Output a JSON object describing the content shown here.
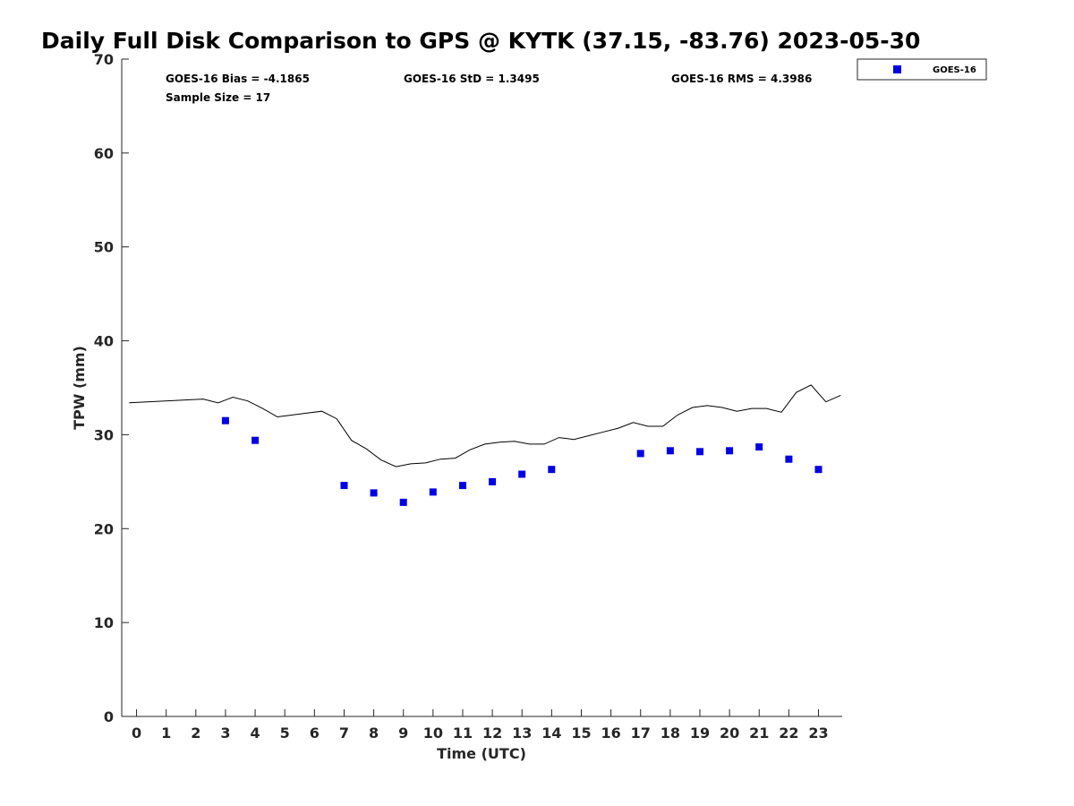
{
  "chart_data": {
    "type": "scatter",
    "title": "Daily Full Disk Comparison to GPS @ KYTK (37.15, -83.76) 2023-05-30",
    "xlabel": "Time (UTC)",
    "ylabel": "TPW (mm)",
    "xlim": [
      -0.5,
      23.8
    ],
    "ylim": [
      0,
      70
    ],
    "xticks": [
      0,
      1,
      2,
      3,
      4,
      5,
      6,
      7,
      8,
      9,
      10,
      11,
      12,
      13,
      14,
      15,
      16,
      17,
      18,
      19,
      20,
      21,
      22,
      23
    ],
    "yticks": [
      0,
      10,
      20,
      30,
      40,
      50,
      60,
      70
    ],
    "grid": false,
    "legend_position": "outside-top-right",
    "colors": {
      "goes16": "#0000e6",
      "gps_line": "#000000"
    },
    "series": [
      {
        "name": "GOES-16",
        "kind": "scatter",
        "x": [
          3,
          4,
          7,
          8,
          9,
          10,
          11,
          12,
          13,
          14,
          17,
          18,
          19,
          20,
          21,
          22,
          23
        ],
        "y": [
          31.5,
          29.4,
          24.6,
          23.8,
          22.8,
          23.9,
          24.6,
          25.0,
          25.8,
          26.3,
          28.0,
          28.3,
          28.2,
          28.3,
          28.7,
          27.4,
          26.3
        ]
      },
      {
        "kind": "line",
        "x": [
          -0.25,
          2.25,
          2.75,
          3.25,
          3.75,
          4.25,
          4.75,
          5.25,
          5.75,
          6.25,
          6.75,
          7.25,
          7.75,
          8.25,
          8.75,
          9.25,
          9.75,
          10.25,
          10.75,
          11.25,
          11.75,
          12.25,
          12.75,
          13.25,
          13.75,
          14.25,
          14.75,
          15.25,
          15.75,
          16.25,
          16.75,
          17.25,
          17.75,
          18.25,
          18.75,
          19.25,
          19.75,
          20.25,
          20.75,
          21.25,
          21.75,
          22.25,
          22.75,
          23.25,
          23.75
        ],
        "y": [
          33.4,
          33.8,
          33.4,
          34.0,
          33.6,
          32.8,
          31.9,
          32.1,
          32.3,
          32.5,
          31.7,
          29.4,
          28.5,
          27.3,
          26.6,
          26.9,
          27.0,
          27.4,
          27.5,
          28.4,
          29.0,
          29.2,
          29.3,
          29.0,
          29.0,
          29.7,
          29.5,
          29.9,
          30.3,
          30.7,
          31.3,
          30.9,
          30.9,
          32.1,
          32.9,
          33.1,
          32.9,
          32.5,
          32.8,
          32.8,
          32.4,
          34.5,
          35.3,
          33.5,
          34.2
        ]
      }
    ],
    "stats": {
      "bias": "GOES-16 Bias = -4.1865",
      "std": "GOES-16 StD = 1.3495",
      "rms": "GOES-16 RMS = 4.3986",
      "sample": "Sample Size = 17"
    },
    "legend": [
      "GOES-16"
    ]
  }
}
